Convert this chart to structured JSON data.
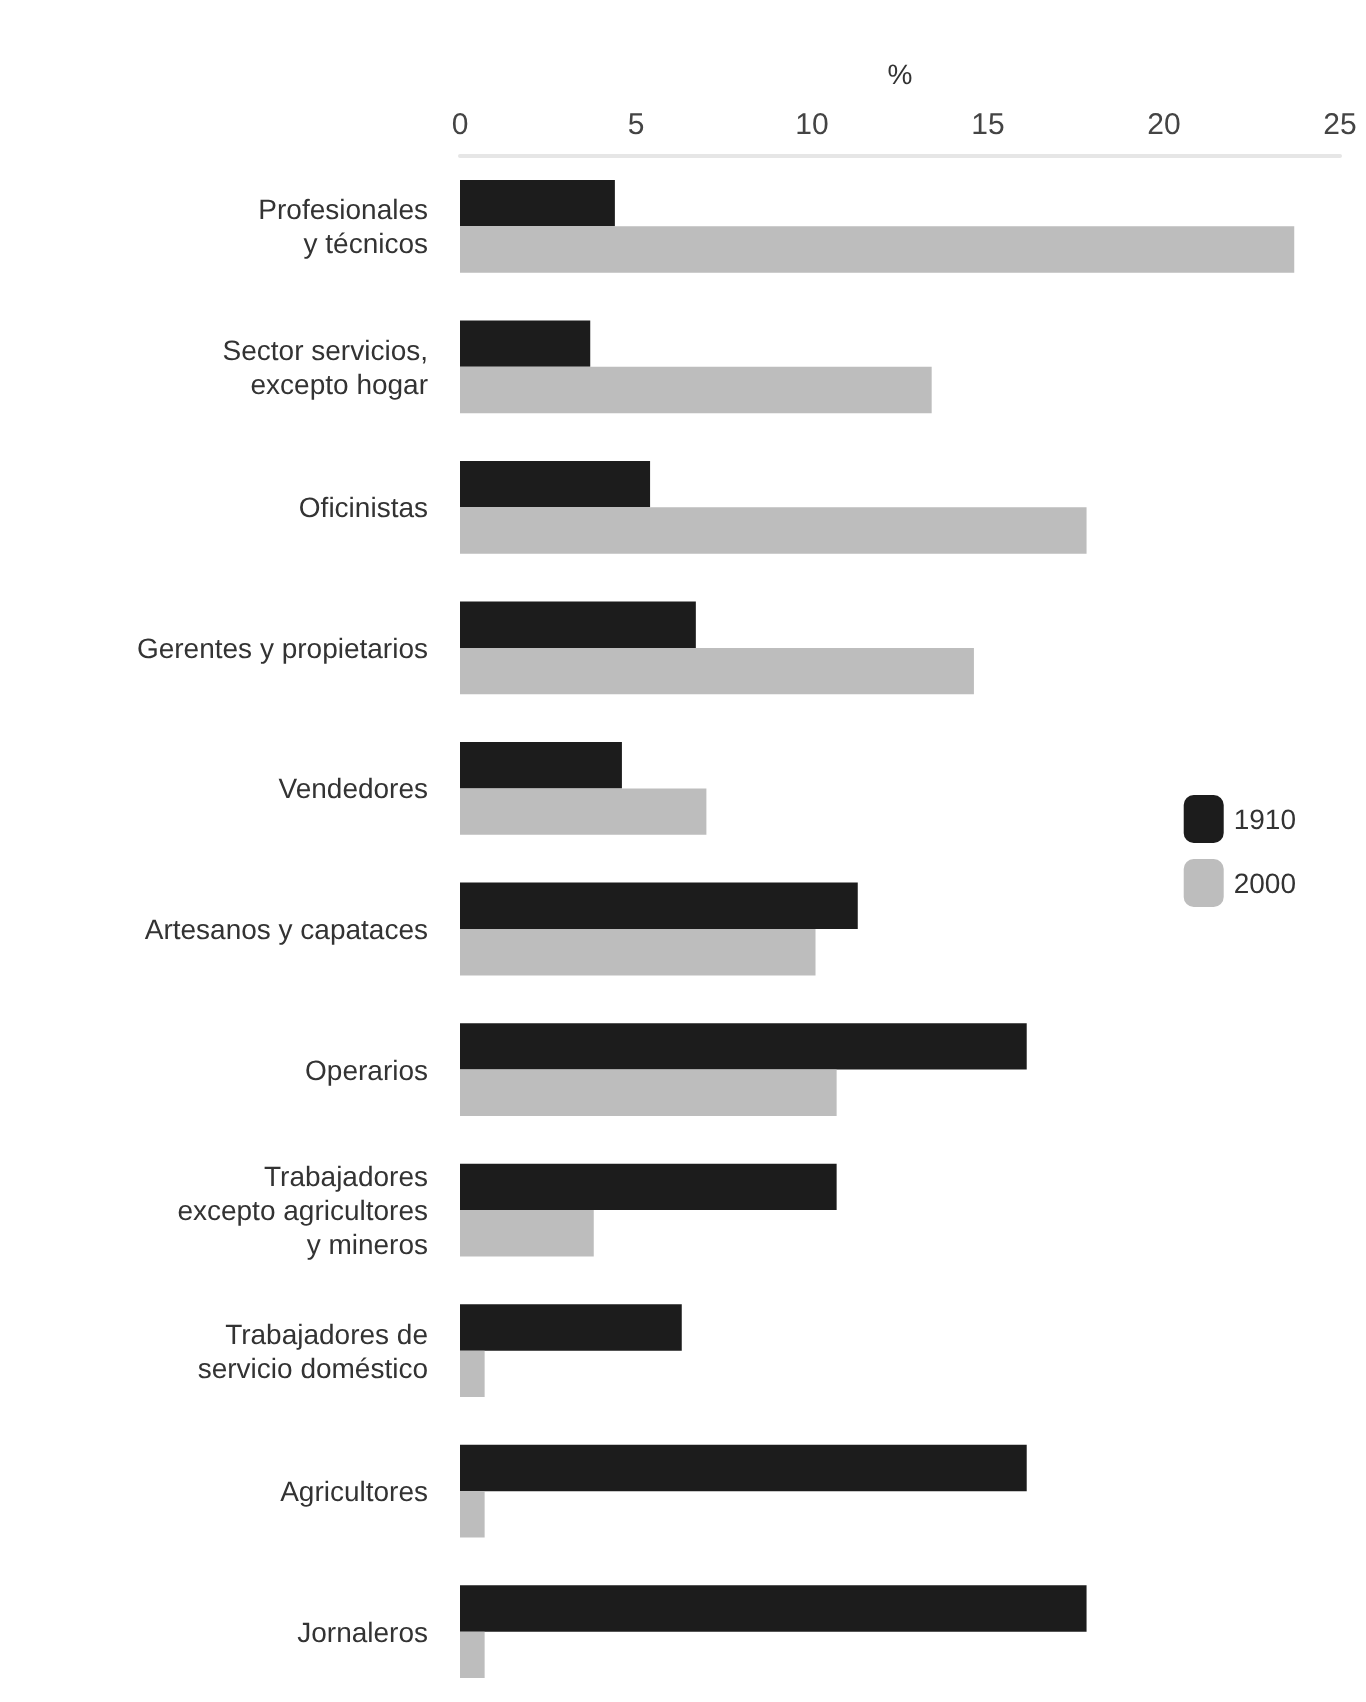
{
  "chart_data": {
    "type": "bar",
    "orientation": "horizontal",
    "xlabel": "%",
    "categories": [
      "Profesionales\ny técnicos",
      "Sector servicios,\nexcepto hogar",
      "Oficinistas",
      "Gerentes y propietarios",
      "Vendedores",
      "Artesanos y capataces",
      "Operarios",
      "Trabajadores\nexcepto agricultores\ny mineros",
      "Trabajadores de\nservicio doméstico",
      "Agricultores",
      "Jornaleros"
    ],
    "series": [
      {
        "name": "1910",
        "color": "#1c1c1c",
        "values": [
          4.4,
          3.7,
          5.4,
          6.7,
          4.6,
          11.3,
          16.1,
          10.7,
          6.3,
          16.1,
          17.8
        ]
      },
      {
        "name": "2000",
        "color": "#bdbdbd",
        "values": [
          23.7,
          13.4,
          17.8,
          14.6,
          7.0,
          10.1,
          10.7,
          3.8,
          0.7,
          0.7,
          0.7
        ]
      }
    ],
    "xlim": [
      0,
      25
    ],
    "xticks": [
      0,
      5,
      10,
      15,
      20,
      25
    ],
    "grid": false,
    "legend": "right"
  }
}
